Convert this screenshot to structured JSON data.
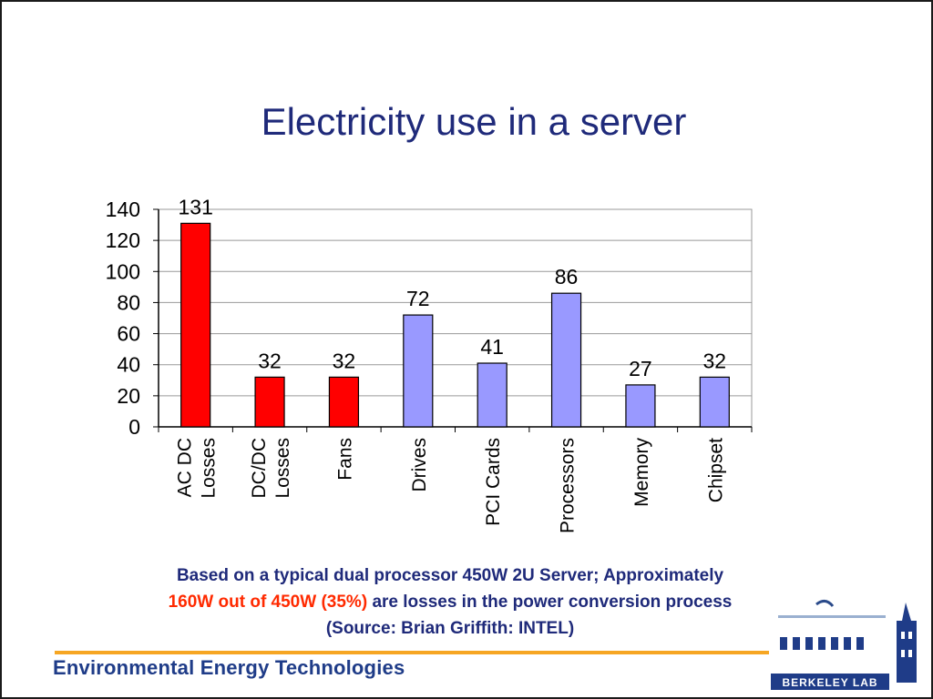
{
  "slide": {
    "title": "Electricity use in a server",
    "note_line1": "Based on a typical dual processor 450W 2U Server; Approximately",
    "note_highlight": "160W out of 450W (35%)",
    "note_line2_rest": "are losses in the power conversion process",
    "note_line3": "(Source: Brian Griffith: INTEL)",
    "footer": "Environmental Energy Technologies",
    "logo_text": "Berkeley Lab"
  },
  "colors": {
    "title": "#1f2a7a",
    "loss_bar": "#ff0000",
    "component_bar": "#9999ff",
    "accent_rule": "#f6a623",
    "footer": "#1f3c88"
  },
  "chart_data": {
    "type": "bar",
    "title": "",
    "xlabel": "",
    "ylabel": "",
    "ylim": [
      0,
      140
    ],
    "yticks": [
      0,
      20,
      40,
      60,
      80,
      100,
      120,
      140
    ],
    "grid": true,
    "categories": [
      [
        "AC DC",
        "Losses"
      ],
      [
        "DC/DC",
        "Losses"
      ],
      [
        "Fans"
      ],
      [
        "Drives"
      ],
      [
        "PCI Cards"
      ],
      [
        "Processors"
      ],
      [
        "Memory"
      ],
      [
        "Chipset"
      ]
    ],
    "values": [
      131,
      32,
      32,
      72,
      41,
      86,
      27,
      32
    ],
    "bar_colors": [
      "#ff0000",
      "#ff0000",
      "#ff0000",
      "#9999ff",
      "#9999ff",
      "#9999ff",
      "#9999ff",
      "#9999ff"
    ],
    "data_labels": true
  }
}
